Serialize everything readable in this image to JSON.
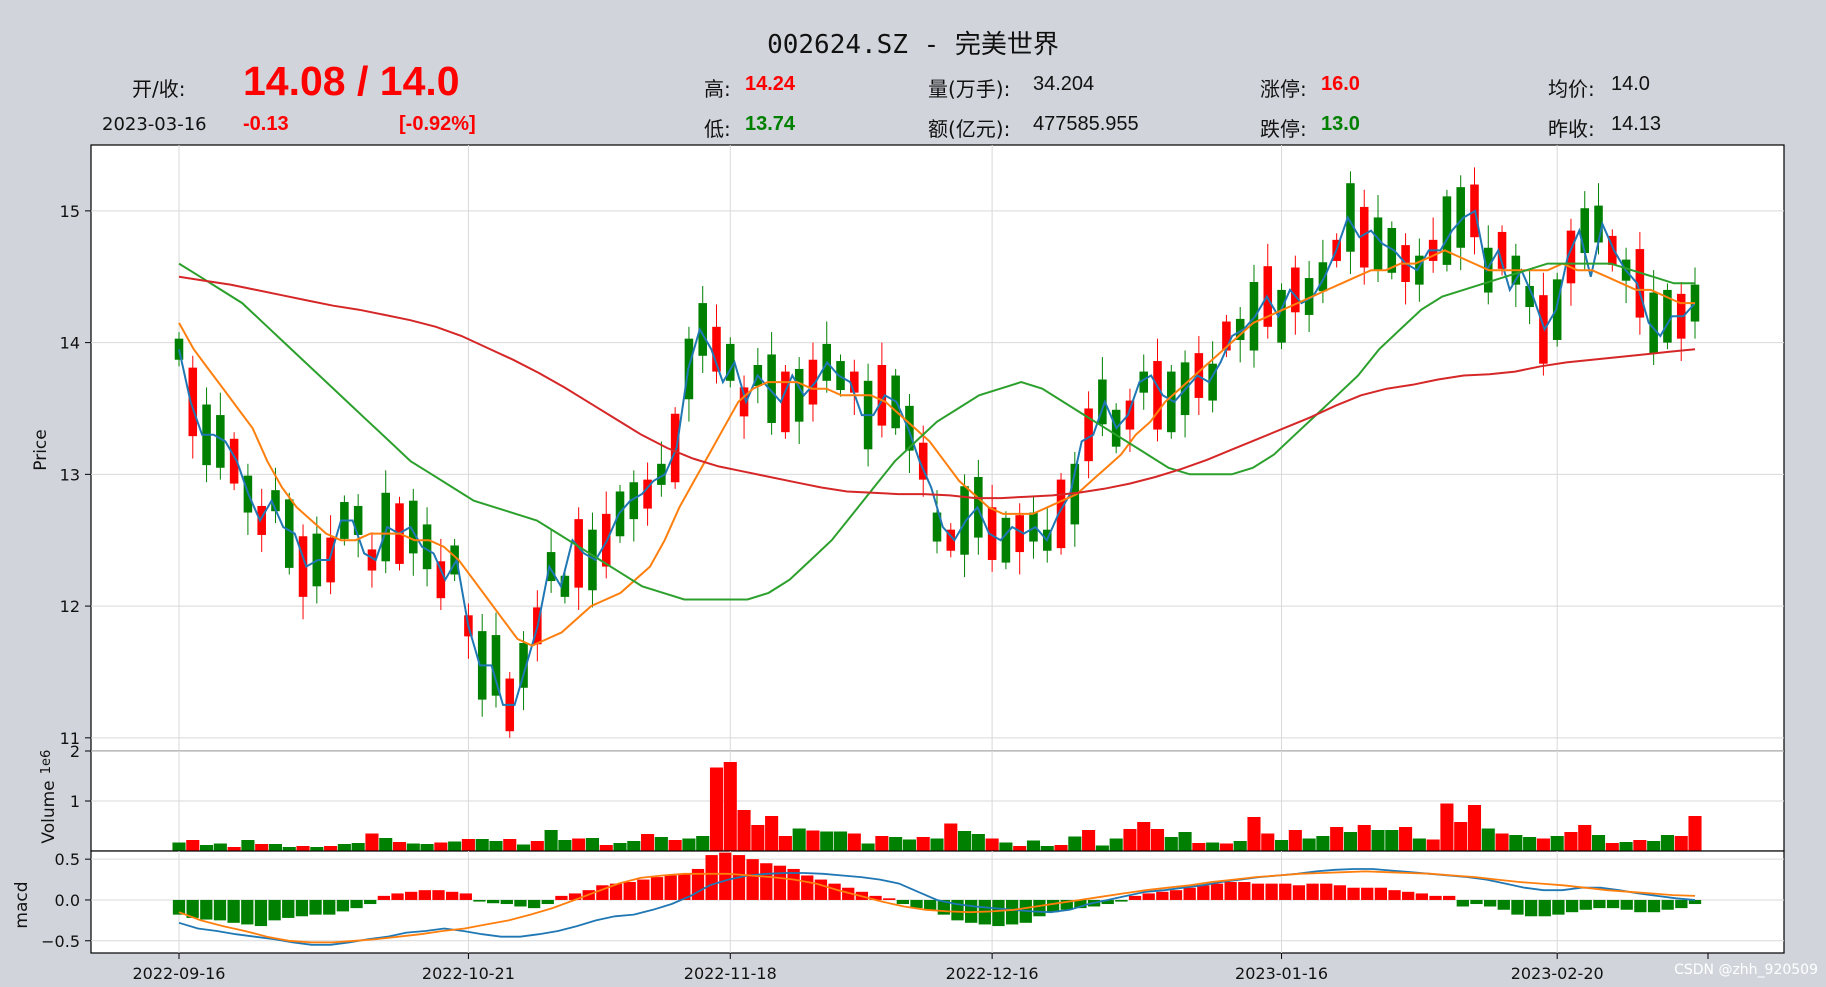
{
  "header": {
    "title": "002624.SZ - 完美世界",
    "open_close_label": "开/收:",
    "open_close_value": "14.08 / 14.0",
    "date": "2023-03-16",
    "change": "-0.13",
    "change_pct": "[-0.92%]",
    "high_label": "高:",
    "high_value": "14.24",
    "low_label": "低:",
    "low_value": "13.74",
    "volume_label": "量(万手):",
    "volume_value": "34.204",
    "amount_label": "额(亿元):",
    "amount_value": "477585.955",
    "limit_up_label": "涨停:",
    "limit_up_value": "16.0",
    "limit_down_label": "跌停:",
    "limit_down_value": "13.0",
    "avg_label": "均价:",
    "avg_value": "14.0",
    "prev_close_label": "昨收:",
    "prev_close_value": "14.13"
  },
  "watermark": "CSDN @zhh_920509",
  "colors": {
    "up": "#ff0000",
    "down": "#008000",
    "ma5": "#1f77b4",
    "ma10": "#ff7f0e",
    "ma20": "#2ca02c",
    "ma60": "#d62728"
  },
  "chart_data": [
    {
      "type": "candlestick",
      "ylabel": "Price",
      "ylim": [
        10.9,
        15.5
      ],
      "yticks": [
        "11",
        "12",
        "13",
        "14",
        "15"
      ],
      "xticks": [
        "2022-09-16",
        "2022-10-21",
        "2022-11-18",
        "2022-12-16",
        "2023-01-16",
        "2023-02-20"
      ],
      "grid": true,
      "series": [
        {
          "values": [
            13.95,
            13.55,
            13.3,
            13.3,
            13.25,
            13.1,
            12.85,
            12.65,
            12.8,
            12.6,
            12.55,
            12.3,
            12.35,
            12.35,
            12.65,
            12.65,
            12.4,
            12.35,
            12.6,
            12.55,
            12.6,
            12.45,
            12.4,
            12.2,
            12.35,
            11.85,
            11.55,
            11.55,
            11.25,
            11.25,
            11.55,
            11.85,
            12.3,
            12.15,
            12.5,
            12.4,
            12.35,
            12.5,
            12.7,
            12.8,
            12.85,
            12.95,
            13.0,
            13.2,
            13.8,
            14.1,
            13.95,
            13.7,
            13.85,
            13.55,
            13.75,
            13.65,
            13.55,
            13.75,
            13.6,
            13.7,
            13.85,
            13.75,
            13.7,
            13.45,
            13.45,
            13.6,
            13.55,
            13.35,
            13.1,
            12.9,
            12.6,
            12.5,
            12.65,
            12.75,
            12.55,
            12.5,
            12.6,
            12.55,
            12.6,
            12.5,
            12.7,
            12.85,
            13.25,
            13.3,
            13.55,
            13.35,
            13.45,
            13.7,
            13.75,
            13.6,
            13.55,
            13.65,
            13.75,
            13.7,
            13.85,
            14.05,
            14.1,
            14.2,
            14.35,
            14.2,
            14.4,
            14.3,
            14.35,
            14.5,
            14.7,
            14.95,
            14.8,
            14.85,
            14.75,
            14.7,
            14.6,
            14.55,
            14.7,
            14.7,
            14.85,
            14.95,
            15.0,
            14.55,
            14.7,
            14.4,
            14.55,
            14.35,
            14.1,
            14.25,
            14.65,
            14.85,
            14.5,
            14.9,
            14.7,
            14.55,
            14.45,
            14.15,
            14.05,
            14.2,
            14.2,
            14.3
          ],
          "name": ""
        },
        {
          "values": [
            14.15,
            13.95,
            13.8,
            13.65,
            13.5,
            13.35,
            13.1,
            12.9,
            12.75,
            12.65,
            12.55,
            12.5,
            12.5,
            12.55,
            12.55,
            12.55,
            12.5,
            12.5,
            12.45,
            12.35,
            12.2,
            12.05,
            11.9,
            11.75,
            11.7,
            11.75,
            11.8,
            11.9,
            12.0,
            12.05,
            12.1,
            12.2,
            12.3,
            12.5,
            12.75,
            12.95,
            13.15,
            13.35,
            13.55,
            13.65,
            13.7,
            13.7,
            13.7,
            13.65,
            13.65,
            13.6,
            13.6,
            13.6,
            13.55,
            13.45,
            13.35,
            13.25,
            13.1,
            12.95,
            12.85,
            12.75,
            12.7,
            12.7,
            12.7,
            12.75,
            12.8,
            12.85,
            12.95,
            13.05,
            13.15,
            13.3,
            13.4,
            13.55,
            13.65,
            13.75,
            13.85,
            13.95,
            14.05,
            14.15,
            14.2,
            14.25,
            14.3,
            14.35,
            14.4,
            14.45,
            14.5,
            14.55,
            14.55,
            14.6,
            14.6,
            14.65,
            14.7,
            14.65,
            14.6,
            14.55,
            14.55,
            14.55,
            14.55,
            14.55,
            14.6,
            14.55,
            14.55,
            14.5,
            14.45,
            14.4,
            14.4,
            14.35,
            14.3,
            14.3
          ],
          "name": ""
        },
        {
          "values": [
            14.6,
            14.5,
            14.4,
            14.3,
            14.15,
            14.0,
            13.85,
            13.7,
            13.55,
            13.4,
            13.25,
            13.1,
            13.0,
            12.9,
            12.8,
            12.75,
            12.7,
            12.65,
            12.55,
            12.45,
            12.35,
            12.25,
            12.15,
            12.1,
            12.05,
            12.05,
            12.05,
            12.05,
            12.1,
            12.2,
            12.35,
            12.5,
            12.7,
            12.9,
            13.1,
            13.25,
            13.4,
            13.5,
            13.6,
            13.65,
            13.7,
            13.65,
            13.55,
            13.45,
            13.35,
            13.25,
            13.15,
            13.05,
            13.0,
            13.0,
            13.0,
            13.05,
            13.15,
            13.3,
            13.45,
            13.6,
            13.75,
            13.95,
            14.1,
            14.25,
            14.35,
            14.4,
            14.45,
            14.5,
            14.55,
            14.6,
            14.6,
            14.6,
            14.6,
            14.55,
            14.5,
            14.45,
            14.45
          ],
          "name": ""
        },
        {
          "values": [
            14.5,
            14.47,
            14.44,
            14.4,
            14.36,
            14.32,
            14.28,
            14.25,
            14.21,
            14.17,
            14.12,
            14.05,
            13.96,
            13.87,
            13.77,
            13.66,
            13.54,
            13.42,
            13.3,
            13.2,
            13.12,
            13.06,
            13.02,
            12.98,
            12.94,
            12.9,
            12.87,
            12.86,
            12.85,
            12.85,
            12.84,
            12.82,
            12.82,
            12.83,
            12.84,
            12.86,
            12.89,
            12.93,
            12.98,
            13.04,
            13.11,
            13.19,
            13.27,
            13.35,
            13.43,
            13.52,
            13.6,
            13.65,
            13.68,
            13.72,
            13.75,
            13.76,
            13.78,
            13.82,
            13.85,
            13.87,
            13.89,
            13.91,
            13.93,
            13.95
          ],
          "name": ""
        }
      ]
    },
    {
      "type": "bar",
      "ylabel": "Volume",
      "yscale_label": "1e6",
      "yticks": [
        "1",
        "2"
      ],
      "ylim": [
        0,
        2
      ],
      "values": [
        0.17,
        0.22,
        0.12,
        0.15,
        0.08,
        0.22,
        0.14,
        0.14,
        0.08,
        0.1,
        0.08,
        0.1,
        0.14,
        0.16,
        0.35,
        0.26,
        0.18,
        0.15,
        0.14,
        0.17,
        0.19,
        0.24,
        0.24,
        0.2,
        0.24,
        0.13,
        0.2,
        0.42,
        0.22,
        0.25,
        0.26,
        0.12,
        0.16,
        0.2,
        0.34,
        0.28,
        0.22,
        0.25,
        0.3,
        1.67,
        1.78,
        0.82,
        0.52,
        0.7,
        0.3,
        0.45,
        0.41,
        0.39,
        0.39,
        0.35,
        0.15,
        0.3,
        0.28,
        0.23,
        0.28,
        0.25,
        0.55,
        0.4,
        0.34,
        0.25,
        0.17,
        0.1,
        0.21,
        0.1,
        0.12,
        0.29,
        0.42,
        0.11,
        0.25,
        0.44,
        0.58,
        0.44,
        0.28,
        0.38,
        0.16,
        0.17,
        0.15,
        0.2,
        0.68,
        0.35,
        0.22,
        0.42,
        0.25,
        0.3,
        0.48,
        0.38,
        0.52,
        0.42,
        0.42,
        0.48,
        0.25,
        0.23,
        0.95,
        0.58,
        0.92,
        0.45,
        0.35,
        0.32,
        0.28,
        0.25,
        0.3,
        0.38,
        0.52,
        0.32,
        0.16,
        0.18,
        0.22,
        0.2,
        0.32,
        0.3,
        0.7
      ]
    },
    {
      "type": "bar+line",
      "ylabel": "macd",
      "yticks": [
        "0.5",
        "0.0",
        "−0.5"
      ],
      "ylim": [
        -0.65,
        0.6
      ],
      "hist": [
        -0.18,
        -0.22,
        -0.24,
        -0.25,
        -0.28,
        -0.3,
        -0.32,
        -0.25,
        -0.22,
        -0.2,
        -0.18,
        -0.18,
        -0.14,
        -0.1,
        -0.05,
        0.05,
        0.08,
        0.1,
        0.12,
        0.12,
        0.1,
        0.08,
        -0.02,
        -0.04,
        -0.05,
        -0.08,
        -0.1,
        -0.05,
        0.05,
        0.08,
        0.12,
        0.18,
        0.2,
        0.22,
        0.25,
        0.28,
        0.3,
        0.32,
        0.38,
        0.55,
        0.58,
        0.55,
        0.5,
        0.45,
        0.42,
        0.38,
        0.3,
        0.25,
        0.2,
        0.15,
        0.1,
        0.05,
        0.02,
        -0.05,
        -0.1,
        -0.12,
        -0.18,
        -0.25,
        -0.28,
        -0.3,
        -0.32,
        -0.3,
        -0.28,
        -0.2,
        -0.15,
        -0.12,
        -0.1,
        -0.08,
        -0.05,
        -0.02,
        0.05,
        0.08,
        0.1,
        0.12,
        0.15,
        0.18,
        0.2,
        0.22,
        0.22,
        0.2,
        0.2,
        0.2,
        0.18,
        0.2,
        0.2,
        0.18,
        0.15,
        0.15,
        0.15,
        0.12,
        0.1,
        0.08,
        0.05,
        0.05,
        -0.08,
        -0.05,
        -0.08,
        -0.12,
        -0.18,
        -0.2,
        -0.2,
        -0.18,
        -0.15,
        -0.12,
        -0.1,
        -0.1,
        -0.12,
        -0.15,
        -0.15,
        -0.12,
        -0.1,
        -0.05
      ],
      "dif": [
        -0.28,
        -0.35,
        -0.38,
        -0.42,
        -0.45,
        -0.48,
        -0.52,
        -0.55,
        -0.55,
        -0.52,
        -0.48,
        -0.45,
        -0.4,
        -0.38,
        -0.35,
        -0.38,
        -0.42,
        -0.45,
        -0.45,
        -0.42,
        -0.38,
        -0.32,
        -0.25,
        -0.2,
        -0.18,
        -0.12,
        -0.05,
        0.05,
        0.18,
        0.25,
        0.3,
        0.32,
        0.33,
        0.33,
        0.32,
        0.3,
        0.28,
        0.25,
        0.2,
        0.1,
        0.0,
        -0.05,
        -0.08,
        -0.1,
        -0.12,
        -0.14,
        -0.15,
        -0.12,
        -0.05,
        0.0,
        0.05,
        0.1,
        0.12,
        0.15,
        0.18,
        0.22,
        0.25,
        0.28,
        0.3,
        0.32,
        0.35,
        0.37,
        0.38,
        0.38,
        0.36,
        0.34,
        0.32,
        0.3,
        0.28,
        0.25,
        0.2,
        0.15,
        0.12,
        0.12,
        0.15,
        0.15,
        0.12,
        0.08,
        0.05,
        0.02,
        0.0
      ],
      "dea": [
        -0.15,
        -0.25,
        -0.32,
        -0.38,
        -0.45,
        -0.5,
        -0.52,
        -0.52,
        -0.5,
        -0.48,
        -0.45,
        -0.42,
        -0.38,
        -0.35,
        -0.3,
        -0.25,
        -0.18,
        -0.1,
        0.0,
        0.1,
        0.2,
        0.27,
        0.3,
        0.32,
        0.32,
        0.32,
        0.3,
        0.28,
        0.25,
        0.2,
        0.12,
        0.05,
        -0.02,
        -0.08,
        -0.12,
        -0.14,
        -0.15,
        -0.14,
        -0.12,
        -0.08,
        -0.04,
        0.0,
        0.04,
        0.08,
        0.12,
        0.15,
        0.18,
        0.22,
        0.25,
        0.28,
        0.3,
        0.32,
        0.33,
        0.34,
        0.35,
        0.34,
        0.33,
        0.32,
        0.3,
        0.28,
        0.25,
        0.22,
        0.2,
        0.18,
        0.15,
        0.12,
        0.1,
        0.08,
        0.06,
        0.05
      ]
    }
  ]
}
